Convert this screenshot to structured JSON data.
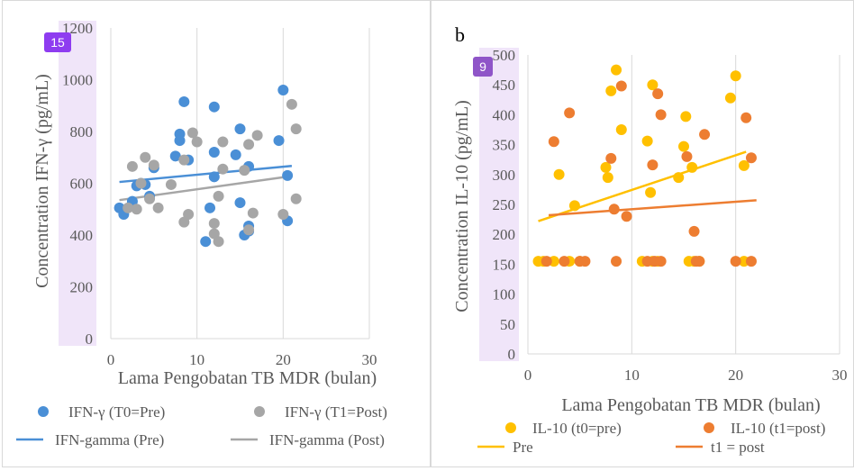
{
  "badges": {
    "a": "15",
    "b": "9"
  },
  "colors": {
    "pre_a": "#4a8fd6",
    "post_a": "#a6a6a6",
    "pre_b": "#ffc000",
    "post_b": "#ed7d31",
    "badge_a": "#8e3cf0",
    "badge_b": "#8f55c8",
    "tick_highlight": "#e6d3f5",
    "grid": "#d9d9d9"
  },
  "chart_data": [
    {
      "type": "scatter",
      "panel_label": "",
      "xlabel": "Lama Pengobatan TB MDR (bulan)",
      "ylabel": "Concentration IFN-γ (pg/mL)",
      "xlim": [
        0,
        30
      ],
      "ylim": [
        0,
        1200
      ],
      "xticks": [
        0,
        10,
        20,
        30
      ],
      "yticks": [
        0,
        200,
        400,
        600,
        800,
        1000,
        1200
      ],
      "grid": "vertical",
      "legend_position": "bottom",
      "series": [
        {
          "name": "IFN-γ (T0=Pre)",
          "kind": "points",
          "color_key": "pre_a",
          "points": [
            [
              1,
              505
            ],
            [
              1.5,
              480
            ],
            [
              2.5,
              530
            ],
            [
              3,
              590
            ],
            [
              3.5,
              600
            ],
            [
              4,
              595
            ],
            [
              4.5,
              550
            ],
            [
              5,
              660
            ],
            [
              7.5,
              705
            ],
            [
              8,
              790
            ],
            [
              8,
              765
            ],
            [
              8.5,
              915
            ],
            [
              9,
              690
            ],
            [
              11,
              375
            ],
            [
              11.5,
              505
            ],
            [
              12,
              895
            ],
            [
              12,
              720
            ],
            [
              12,
              625
            ],
            [
              14.5,
              710
            ],
            [
              15,
              810
            ],
            [
              15,
              525
            ],
            [
              15.5,
              400
            ],
            [
              16,
              665
            ],
            [
              16,
              435
            ],
            [
              16,
              415
            ],
            [
              19.5,
              765
            ],
            [
              20,
              960
            ],
            [
              20.5,
              630
            ],
            [
              20.5,
              455
            ]
          ]
        },
        {
          "name": "IFN-γ (T1=Post)",
          "kind": "points",
          "color_key": "post_a",
          "points": [
            [
              2,
              505
            ],
            [
              2.5,
              665
            ],
            [
              3,
              500
            ],
            [
              3.5,
              600
            ],
            [
              4,
              700
            ],
            [
              4.5,
              540
            ],
            [
              5,
              670
            ],
            [
              5.5,
              505
            ],
            [
              7,
              595
            ],
            [
              8.5,
              690
            ],
            [
              8.5,
              450
            ],
            [
              9,
              480
            ],
            [
              9.5,
              795
            ],
            [
              10,
              760
            ],
            [
              12,
              445
            ],
            [
              12,
              405
            ],
            [
              12.5,
              550
            ],
            [
              12.5,
              375
            ],
            [
              13,
              760
            ],
            [
              13,
              655
            ],
            [
              15.5,
              650
            ],
            [
              16,
              750
            ],
            [
              16,
              420
            ],
            [
              16.5,
              485
            ],
            [
              17,
              785
            ],
            [
              20,
              480
            ],
            [
              21,
              905
            ],
            [
              21.5,
              810
            ],
            [
              21.5,
              540
            ]
          ]
        },
        {
          "name": "IFN-gamma (Pre)",
          "kind": "trend",
          "color_key": "pre_a",
          "points": [
            [
              1,
              605
            ],
            [
              21,
              667
            ]
          ]
        },
        {
          "name": "IFN-gamma (Post)",
          "kind": "trend",
          "color_key": "post_a",
          "points": [
            [
              1,
              535
            ],
            [
              21,
              628
            ]
          ]
        }
      ]
    },
    {
      "type": "scatter",
      "panel_label": "b",
      "xlabel": "Lama Pengobatan TB MDR (bulan)",
      "ylabel": "Concentration IL-10 (pg/mL)",
      "xlim": [
        0,
        30
      ],
      "ylim": [
        0,
        500
      ],
      "xticks": [
        0,
        10,
        20,
        30
      ],
      "yticks": [
        0,
        50,
        100,
        150,
        200,
        250,
        300,
        350,
        400,
        450,
        500
      ],
      "grid": "vertical",
      "legend_position": "bottom",
      "series": [
        {
          "name": "IL-10 (t0=pre)",
          "kind": "points",
          "color_key": "pre_b",
          "points": [
            [
              1,
              155
            ],
            [
              1.5,
              155
            ],
            [
              2.5,
              155
            ],
            [
              3,
              300
            ],
            [
              4,
              155
            ],
            [
              4.5,
              248
            ],
            [
              5,
              155
            ],
            [
              7.5,
              312
            ],
            [
              7.7,
              295
            ],
            [
              8,
              440
            ],
            [
              8.5,
              475
            ],
            [
              9,
              375
            ],
            [
              11,
              155
            ],
            [
              11.5,
              356
            ],
            [
              11.8,
              270
            ],
            [
              12,
              450
            ],
            [
              12,
              155
            ],
            [
              12.5,
              155
            ],
            [
              14.5,
              295
            ],
            [
              15,
              347
            ],
            [
              15.2,
              397
            ],
            [
              15.5,
              155
            ],
            [
              15.8,
              312
            ],
            [
              16,
              155
            ],
            [
              16.5,
              155
            ],
            [
              19.5,
              428
            ],
            [
              20,
              465
            ],
            [
              20.8,
              315
            ],
            [
              20.8,
              155
            ]
          ]
        },
        {
          "name": "IL-10 (t1=post)",
          "kind": "points",
          "color_key": "post_b",
          "points": [
            [
              1.8,
              155
            ],
            [
              2.5,
              355
            ],
            [
              3.5,
              155
            ],
            [
              4,
              403
            ],
            [
              5,
              155
            ],
            [
              5.5,
              155
            ],
            [
              8,
              327
            ],
            [
              8.3,
              242
            ],
            [
              8.5,
              155
            ],
            [
              9,
              448
            ],
            [
              9.5,
              230
            ],
            [
              11.5,
              155
            ],
            [
              12,
              316
            ],
            [
              12.2,
              155
            ],
            [
              12.5,
              435
            ],
            [
              12.8,
              400
            ],
            [
              12.8,
              155
            ],
            [
              15.3,
              330
            ],
            [
              16,
              205
            ],
            [
              16.2,
              155
            ],
            [
              16.5,
              155
            ],
            [
              17,
              367
            ],
            [
              20,
              155
            ],
            [
              21,
              395
            ],
            [
              21.5,
              328
            ],
            [
              21.5,
              155
            ]
          ]
        },
        {
          "name": "Pre",
          "kind": "trend",
          "color_key": "pre_b",
          "points": [
            [
              1,
              222
            ],
            [
              21,
              338
            ]
          ]
        },
        {
          "name": "t1 = post",
          "kind": "trend",
          "color_key": "post_b",
          "points": [
            [
              2,
              232
            ],
            [
              22,
              257
            ]
          ]
        }
      ]
    }
  ]
}
